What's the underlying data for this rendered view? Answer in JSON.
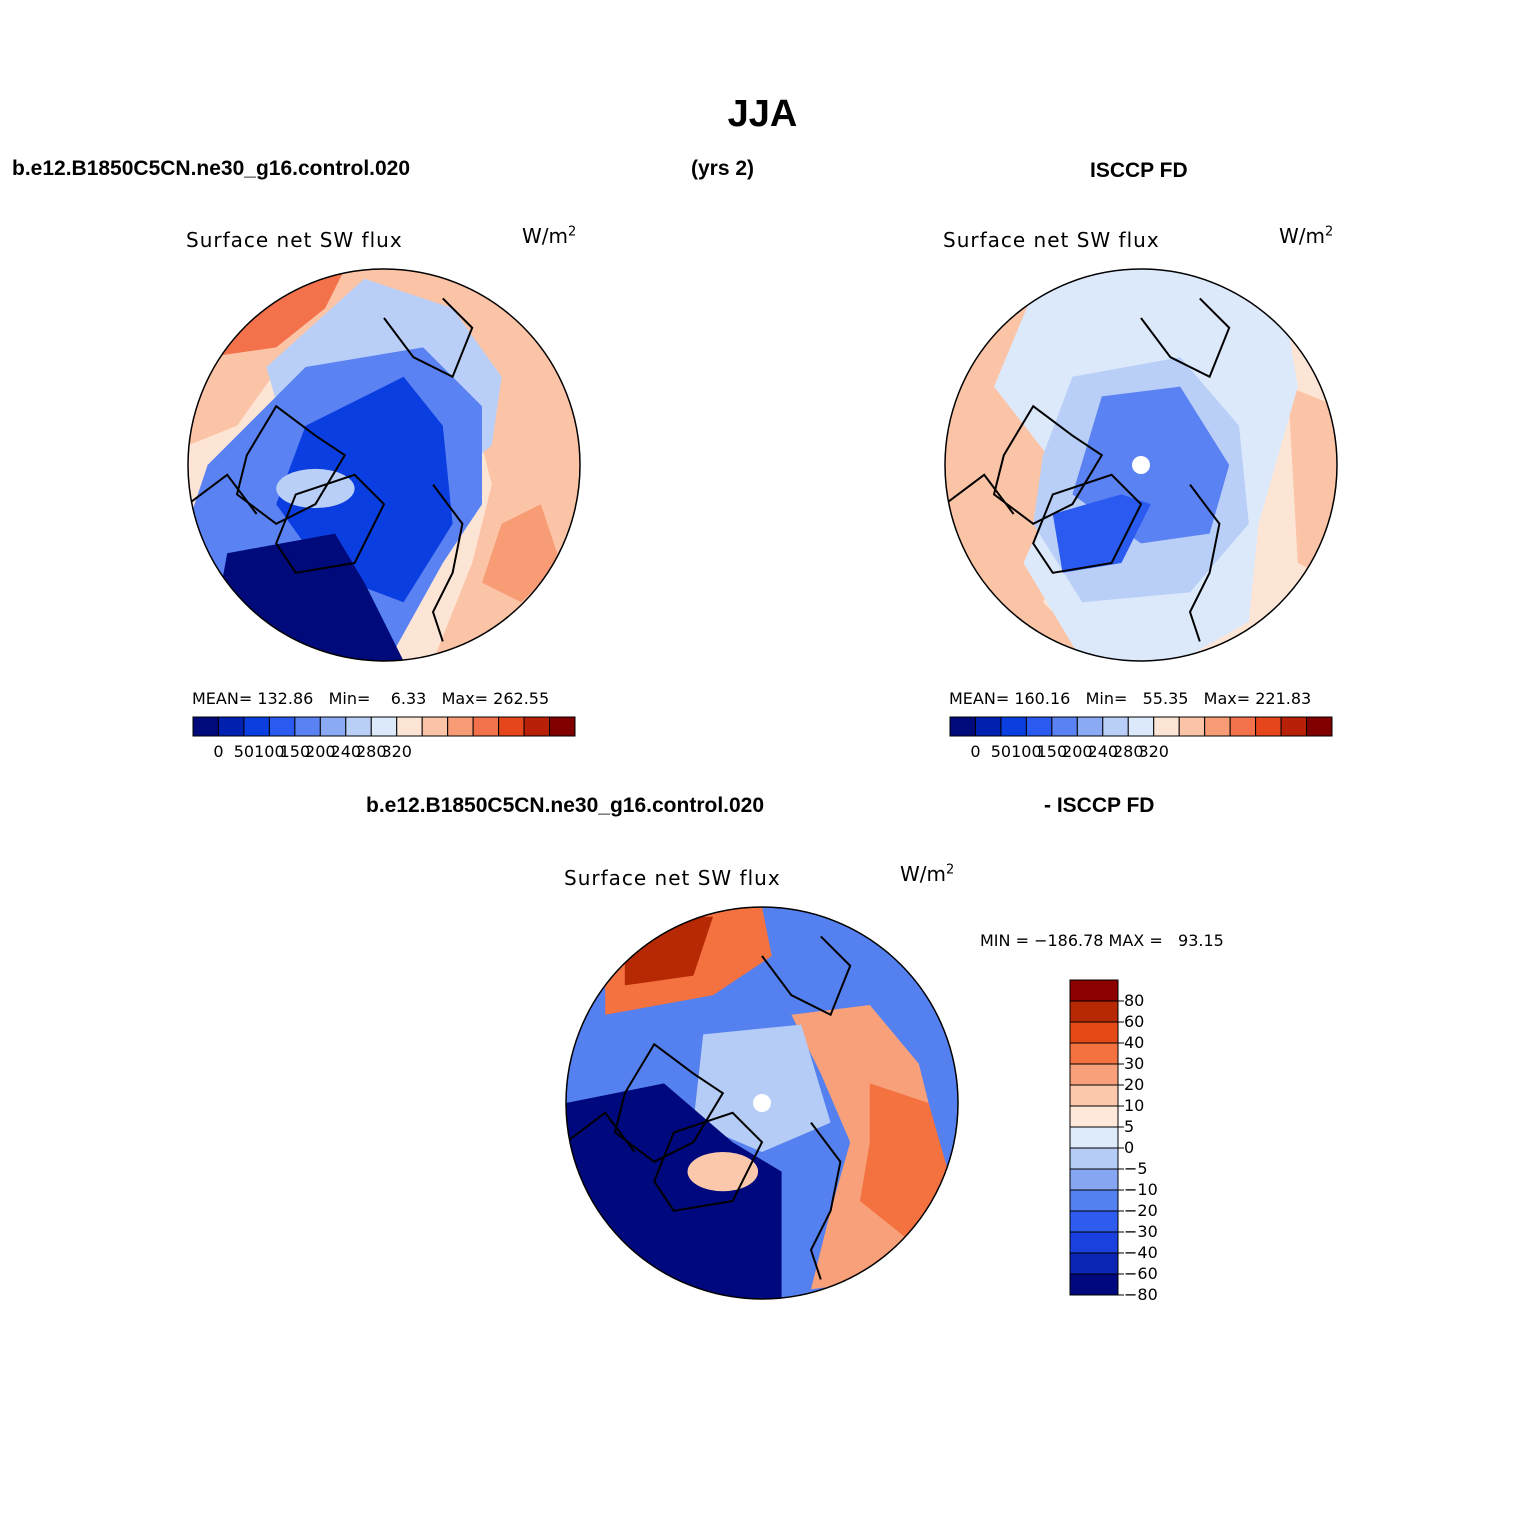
{
  "title": "JJA",
  "header": {
    "case_name": "b.e12.B1850C5CN.ne30_g16.control.020",
    "years": "(yrs 2)",
    "obs_name": "ISCCP FD"
  },
  "diff_header": {
    "case_name": "b.e12.B1850C5CN.ne30_g16.control.020",
    "obs_name": "- ISCCP FD"
  },
  "colors": {
    "abs_palette": [
      "#000a7a",
      "#0020b0",
      "#0a3ee0",
      "#2a5af0",
      "#5a82f2",
      "#8aaaf4",
      "#b9cff7",
      "#dce9fb",
      "#fde5d6",
      "#fbc4a6",
      "#f89c76",
      "#f3724c",
      "#e5461c",
      "#b82108",
      "#800000"
    ],
    "diff_palette": [
      "#00087e",
      "#0a24b4",
      "#1a40e0",
      "#2d5cee",
      "#5580ef",
      "#86a6f2",
      "#b4ccf6",
      "#deebfb",
      "#fde8da",
      "#fbc8ac",
      "#f8a07a",
      "#f37240",
      "#e54a16",
      "#b72805",
      "#8c0000"
    ],
    "land_outline": "#000000",
    "pole_marker": "#ffffff"
  },
  "panels": [
    {
      "id": "model",
      "variable": "Surface net SW flux",
      "units_base": "W/m",
      "units_exp": "2",
      "stats_text": "MEAN= 132.86   Min=    6.33   Max= 262.55",
      "colorbar_ticks": [
        "0",
        "50",
        "100",
        "150",
        "200",
        "240",
        "280",
        "320"
      ]
    },
    {
      "id": "obs",
      "variable": "Surface net SW flux",
      "units_base": "W/m",
      "units_exp": "2",
      "stats_text": "MEAN= 160.16   Min=   55.35   Max= 221.83",
      "colorbar_ticks": [
        "0",
        "50",
        "100",
        "150",
        "200",
        "240",
        "280",
        "320"
      ]
    },
    {
      "id": "diff",
      "variable": "Surface net SW flux",
      "units_base": "W/m",
      "units_exp": "2",
      "stats_text": "MIN = −186.78 MAX =   93.15",
      "colorbar_ticks": [
        "80",
        "60",
        "40",
        "30",
        "20",
        "10",
        "5",
        "0",
        "−5",
        "−10",
        "−20",
        "−30",
        "−40",
        "−60",
        "−80"
      ]
    }
  ]
}
